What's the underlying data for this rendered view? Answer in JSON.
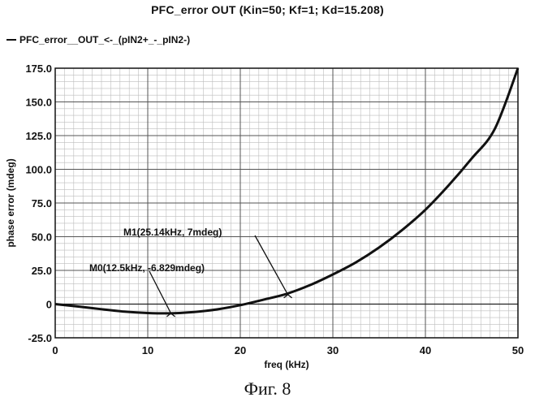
{
  "chart_data": {
    "type": "line",
    "title": "PFC_error OUT (Kin=50; Kf=1; Kd=15.208)",
    "legend": "PFC_error__OUT_<-_(pIN2+_-_pIN2-)",
    "xlabel": "freq (kHz)",
    "ylabel": "phase error (mdeg)",
    "xlim": [
      0,
      50
    ],
    "ylim": [
      -25,
      175
    ],
    "xticks": [
      0,
      10,
      20,
      30,
      40,
      50
    ],
    "xtick_labels": [
      "0",
      "10",
      "20",
      "30",
      "40",
      "50"
    ],
    "yticks": [
      -25,
      0,
      25,
      50,
      75,
      100,
      125,
      150,
      175
    ],
    "ytick_labels": [
      "-25.0",
      "0",
      "25.0",
      "50.0",
      "75.0",
      "100.0",
      "125.0",
      "150.0",
      "175.0"
    ],
    "grid": true,
    "series": [
      {
        "name": "PFC_error__OUT_<-_(pIN2+_-_pIN2-)",
        "x": [
          0,
          2.5,
          5,
          7.5,
          10,
          12.5,
          15,
          17.5,
          20,
          22.5,
          25,
          27.5,
          30,
          32.5,
          35,
          37.5,
          40,
          42.5,
          45,
          47.5,
          50
        ],
        "y": [
          0,
          -1.8,
          -3.8,
          -5.6,
          -6.6,
          -6.83,
          -5.9,
          -3.9,
          -0.8,
          3.3,
          7.6,
          14,
          22,
          31,
          42,
          55,
          70,
          88,
          108,
          130,
          175
        ]
      }
    ],
    "markers": [
      {
        "name": "M0",
        "x": 12.5,
        "y": -6.829,
        "label": "M0(12.5kHz, -6.829mdeg)"
      },
      {
        "name": "M1",
        "x": 25.14,
        "y": 7,
        "label": "M1(25.14kHz, 7mdeg)"
      }
    ]
  },
  "caption": "Фиг. 8"
}
